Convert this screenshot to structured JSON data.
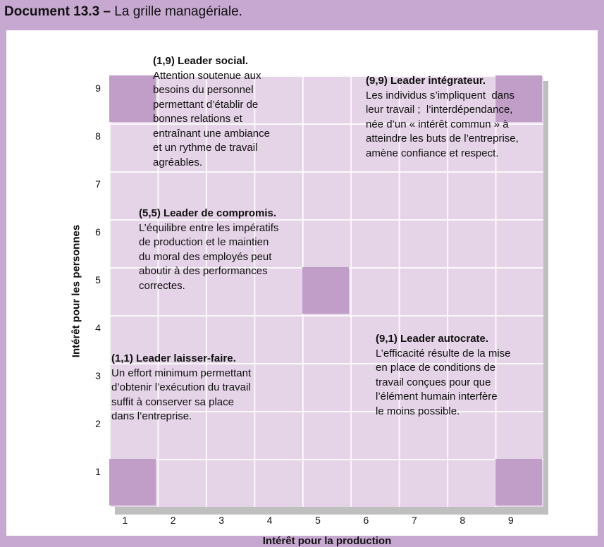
{
  "header": {
    "number": "Document 13.3 –",
    "title": "La grille managériale."
  },
  "axes": {
    "x_label": "Intérêt pour la production",
    "y_label": "Intérêt pour les personnes",
    "x_ticks": [
      "1",
      "2",
      "3",
      "4",
      "5",
      "6",
      "7",
      "8",
      "9"
    ],
    "y_ticks": [
      "9",
      "8",
      "7",
      "6",
      "5",
      "4",
      "3",
      "2",
      "1"
    ]
  },
  "highlight_cells": [
    {
      "name": "cell-1-9",
      "x": 1,
      "y": 9
    },
    {
      "name": "cell-9-9",
      "x": 9,
      "y": 9
    },
    {
      "name": "cell-5-5",
      "x": 5,
      "y": 5
    },
    {
      "name": "cell-1-1",
      "x": 1,
      "y": 1
    },
    {
      "name": "cell-9-1",
      "x": 9,
      "y": 1
    }
  ],
  "styles": {
    "cell_color": "#c09ec7",
    "grid_color": "#e5d3e7",
    "frame_color": "#c7a8d0"
  },
  "notes": {
    "social": {
      "title": "(1,9) Leader social.",
      "lines": [
        "Attention soutenue aux",
        "besoins du personnel",
        "permettant d’établir de",
        "bonnes relations et",
        "entraînant une ambiance",
        "et un rythme de travail",
        "agréables."
      ]
    },
    "integrateur": {
      "title": "(9,9) Leader intégrateur.",
      "lines": [
        "Les individus s’impliquent  dans",
        "leur travail ;  l’interdépendance,",
        "née d’un « intérêt commun » à",
        "atteindre les buts de l’entreprise,",
        "amène confiance et respect."
      ]
    },
    "compromis": {
      "title": "(5,5) Leader de compromis.",
      "lines": [
        "L’équilibre entre les impératifs",
        "de production et le maintien",
        "du moral des employés peut",
        "aboutir à des performances",
        "correctes."
      ]
    },
    "laisser_faire": {
      "title": "(1,1) Leader laisser-faire.",
      "lines": [
        "Un effort minimum permettant",
        "d’obtenir l’exécution du travail",
        "suffit à conserver sa place",
        "dans l’entreprise."
      ]
    },
    "autocrate": {
      "title": "(9,1) Leader autocrate.",
      "lines": [
        "L’efficacité résulte de la mise",
        "en place de conditions de",
        "travail conçues pour que",
        "l’élément humain interfère",
        "le moins possible."
      ]
    }
  }
}
